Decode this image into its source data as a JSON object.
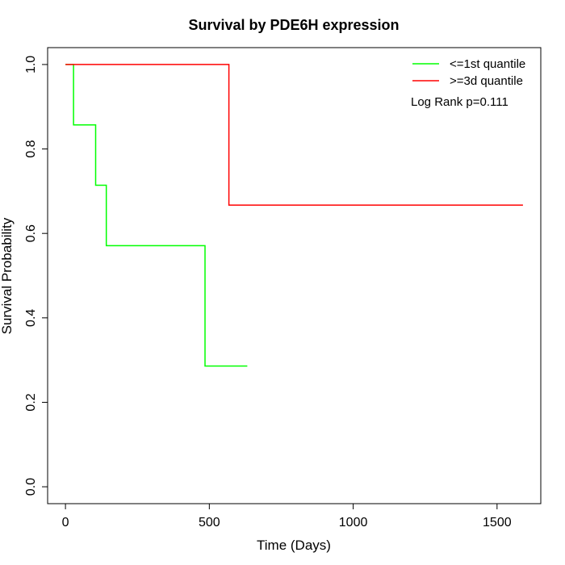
{
  "chart_data": {
    "type": "line",
    "step": true,
    "title": "Survival by PDE6H expression",
    "xlabel": "Time (Days)",
    "ylabel": "Survival Probability",
    "xlim": [
      0,
      1650
    ],
    "ylim": [
      0,
      1.0
    ],
    "xticks": [
      0,
      500,
      1000,
      1500
    ],
    "yticks": [
      0.0,
      0.2,
      0.4,
      0.6,
      0.8,
      1.0
    ],
    "xtick_labels": [
      "0",
      "500",
      "1000",
      "1500"
    ],
    "ytick_labels": [
      "0.0",
      "0.2",
      "0.4",
      "0.6",
      "0.8",
      "1.0"
    ],
    "grid": false,
    "legend_position": "top-right",
    "series": [
      {
        "name": "<=1st quantile",
        "color": "#00ff00",
        "x": [
          0,
          28,
          28,
          105,
          105,
          142,
          142,
          485,
          485,
          632
        ],
        "y": [
          1.0,
          1.0,
          0.857,
          0.857,
          0.714,
          0.714,
          0.571,
          0.571,
          0.286,
          0.286
        ]
      },
      {
        "name": ">=3d quantile",
        "color": "#ff0000",
        "x": [
          0,
          568,
          568,
          1590
        ],
        "y": [
          1.0,
          1.0,
          0.667,
          0.667
        ]
      }
    ],
    "annotation": "Log Rank p=0.111"
  }
}
